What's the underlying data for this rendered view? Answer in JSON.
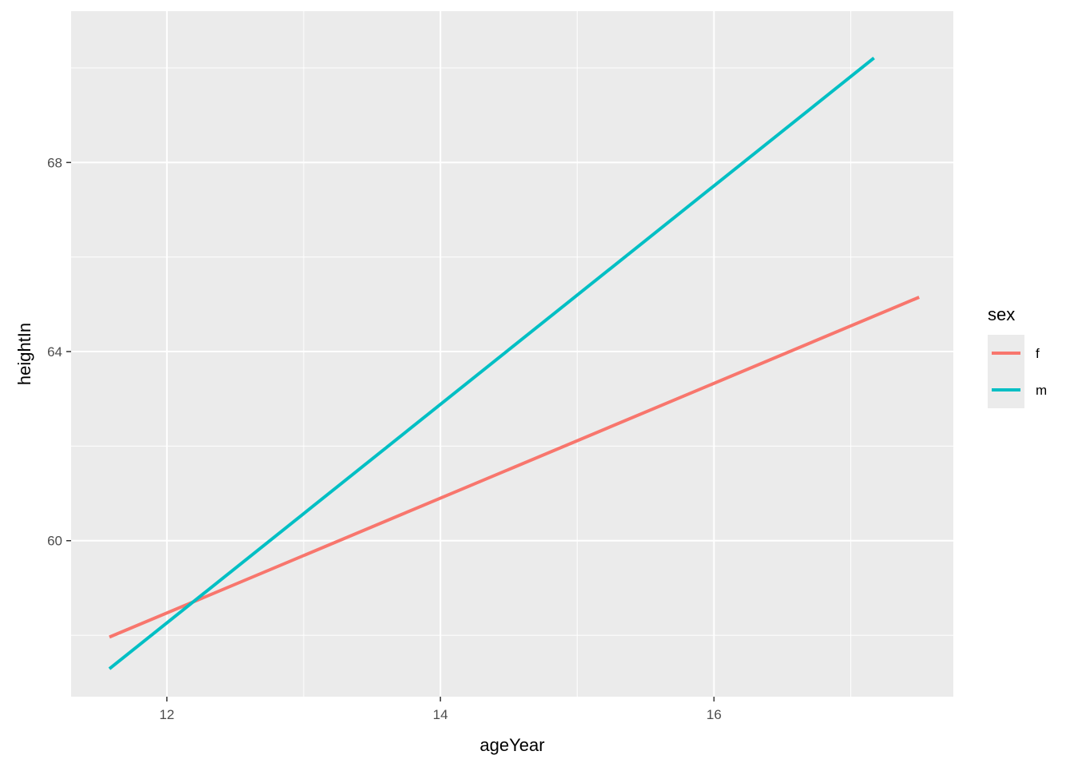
{
  "chart_data": {
    "type": "line",
    "xlabel": "ageYear",
    "ylabel": "heightIn",
    "xlim": [
      11.3,
      17.75
    ],
    "ylim": [
      56.7,
      71.2
    ],
    "x_ticks": [
      12,
      14,
      16
    ],
    "x_tick_labels": [
      "12",
      "14",
      "16"
    ],
    "y_ticks": [
      60,
      64,
      68
    ],
    "y_tick_labels": [
      "60",
      "64",
      "68"
    ],
    "grid": true,
    "legend": {
      "title": "sex",
      "position": "right"
    },
    "series": [
      {
        "name": "f",
        "color": "#F8766D",
        "x": [
          11.58,
          17.5
        ],
        "y": [
          57.96,
          65.15
        ]
      },
      {
        "name": "m",
        "color": "#00BFC4",
        "x": [
          11.58,
          17.17
        ],
        "y": [
          57.29,
          70.21
        ]
      }
    ]
  }
}
